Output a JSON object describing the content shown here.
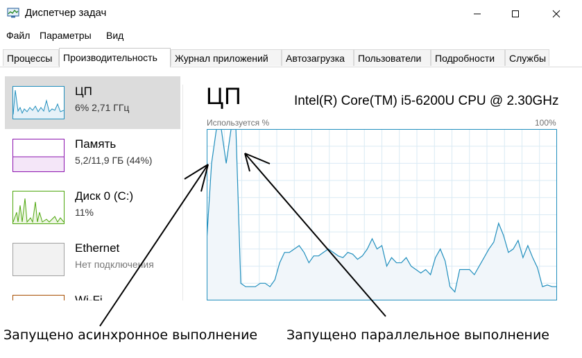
{
  "window": {
    "title": "Диспетчер задач"
  },
  "menu": [
    "Файл",
    "Параметры",
    "Вид"
  ],
  "tabs": [
    {
      "label": "Процессы",
      "active": false
    },
    {
      "label": "Производительность",
      "active": true
    },
    {
      "label": "Журнал приложений",
      "active": false
    },
    {
      "label": "Автозагрузка",
      "active": false
    },
    {
      "label": "Пользователи",
      "active": false
    },
    {
      "label": "Подробности",
      "active": false
    },
    {
      "label": "Службы",
      "active": false
    }
  ],
  "sidebar": {
    "items": [
      {
        "name": "ЦП",
        "sub": "6%  2,71 ГГц",
        "color": "#1f8ebd",
        "selected": true
      },
      {
        "name": "Память",
        "sub": "5,2/11,9 ГБ (44%)",
        "color": "#8b12ae",
        "selected": false
      },
      {
        "name": "Диск 0 (C:)",
        "sub": "11%",
        "color": "#4da60c",
        "selected": false
      },
      {
        "name": "Ethernet",
        "sub": "Нет подключения",
        "color": "#a0a0a0",
        "selected": false
      },
      {
        "name": "Wi-Fi",
        "sub": "",
        "color": "#a74f01",
        "selected": false
      }
    ]
  },
  "main": {
    "title": "ЦП",
    "model": "Intel(R) Core(TM) i5-6200U CPU @ 2.30GHz",
    "usage_label": "Используется %",
    "max_label": "100%",
    "accent": "#1f8ebd",
    "usage_history": [
      35,
      80,
      100,
      100,
      80,
      100,
      100,
      10,
      8,
      8,
      8,
      10,
      10,
      8,
      12,
      22,
      28,
      28,
      30,
      32,
      28,
      22,
      26,
      26,
      28,
      30,
      28,
      26,
      25,
      28,
      27,
      24,
      26,
      30,
      36,
      30,
      32,
      20,
      25,
      22,
      22,
      25,
      20,
      18,
      16,
      18,
      15,
      25,
      30,
      23,
      8,
      5,
      18,
      18,
      18,
      15,
      20,
      25,
      30,
      34,
      45,
      38,
      28,
      30,
      35,
      25,
      32,
      25,
      19,
      8,
      9,
      8,
      8
    ]
  },
  "annotations": {
    "left": "Запущено асинхронное выполнение",
    "right": "Запущено параллельное выполнение"
  }
}
